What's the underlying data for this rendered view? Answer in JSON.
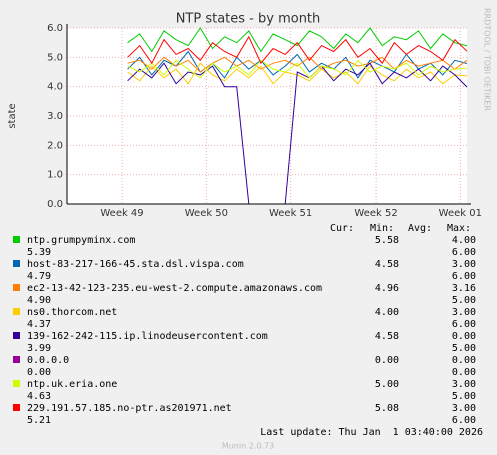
{
  "chart_data": {
    "type": "line",
    "title": "NTP states - by month",
    "y_label": "state",
    "side_text": "RRDTOOL / TOBI OETIKER",
    "x": [
      5,
      6,
      7,
      8,
      9,
      10,
      11,
      12,
      13,
      14,
      15,
      16,
      17,
      18,
      19,
      20,
      21,
      22,
      23,
      24,
      25,
      26,
      27,
      28,
      29,
      30,
      31,
      32,
      33
    ],
    "xlim": [
      0,
      33
    ],
    "xticks": [
      {
        "value": 4.54,
        "label": "Week 49"
      },
      {
        "value": 11.5,
        "label": "Week 50"
      },
      {
        "value": 18.45,
        "label": "Week 51"
      },
      {
        "value": 25.5,
        "label": "Week 52"
      },
      {
        "value": 32.45,
        "label": "Week 01"
      }
    ],
    "ylim": [
      0,
      6
    ],
    "yticks": [
      {
        "value": 0,
        "label": "0.0"
      },
      {
        "value": 1,
        "label": "1.0"
      },
      {
        "value": 2,
        "label": "2.0"
      },
      {
        "value": 3,
        "label": "3.0"
      },
      {
        "value": 4,
        "label": "4.0"
      },
      {
        "value": 5,
        "label": "5.0"
      },
      {
        "value": 6,
        "label": "6.0"
      }
    ],
    "grid": true,
    "series": [
      {
        "name": "ntp.grumpyminx.com",
        "color": "#00cc00",
        "values": [
          5.5,
          5.8,
          5.2,
          5.9,
          5.6,
          5.4,
          6.0,
          5.3,
          5.7,
          5.5,
          5.9,
          5.2,
          5.8,
          5.6,
          5.4,
          5.9,
          5.7,
          5.3,
          5.8,
          5.5,
          6.0,
          5.4,
          5.7,
          5.6,
          5.9,
          5.3,
          5.8,
          5.5,
          5.39
        ]
      },
      {
        "name": "host-83-217-166-45.sta.dsl.vispa.com",
        "color": "#0066b3",
        "values": [
          4.6,
          5.0,
          4.4,
          4.9,
          4.7,
          5.2,
          4.5,
          4.8,
          4.3,
          5.0,
          4.6,
          4.9,
          4.4,
          4.7,
          5.1,
          4.5,
          4.8,
          4.6,
          5.0,
          4.3,
          4.9,
          4.7,
          4.5,
          5.1,
          4.6,
          4.8,
          4.4,
          4.9,
          4.79
        ]
      },
      {
        "name": "ec2-13-42-123-235.eu-west-2.compute.amazonaws.com",
        "color": "#ff8000",
        "values": [
          4.8,
          4.9,
          4.6,
          5.0,
          4.7,
          4.9,
          4.5,
          4.8,
          5.0,
          4.7,
          4.9,
          4.6,
          4.8,
          4.9,
          4.7,
          5.0,
          4.6,
          4.8,
          4.9,
          4.7,
          4.8,
          5.0,
          4.6,
          4.9,
          4.7,
          4.8,
          4.9,
          4.6,
          4.9
        ]
      },
      {
        "name": "ns0.thorcom.net",
        "color": "#ffcc00",
        "values": [
          4.5,
          4.2,
          4.7,
          4.3,
          4.6,
          4.1,
          4.8,
          4.4,
          4.2,
          4.6,
          4.3,
          4.7,
          4.1,
          4.5,
          4.4,
          4.2,
          4.6,
          4.3,
          4.5,
          4.1,
          4.7,
          4.4,
          4.2,
          4.6,
          4.3,
          4.5,
          4.1,
          4.4,
          4.37
        ]
      },
      {
        "name": "139-162-242-115.ip.linodeusercontent.com",
        "color": "#330099",
        "values": [
          4.2,
          4.6,
          4.3,
          4.8,
          4.1,
          4.5,
          4.4,
          4.7,
          4.0,
          4.0,
          0,
          0,
          0,
          0,
          4.5,
          4.3,
          4.7,
          4.2,
          4.6,
          4.4,
          4.8,
          4.1,
          4.5,
          4.3,
          4.6,
          4.2,
          4.7,
          4.4,
          3.99
        ]
      },
      {
        "name": "0.0.0.0",
        "color": "#990099",
        "values": [
          0,
          0,
          0,
          0,
          0,
          0,
          0,
          0,
          0,
          0,
          0,
          0,
          0,
          0,
          0,
          0,
          0,
          0,
          0,
          0,
          0,
          0,
          0,
          0,
          0,
          0,
          0,
          0,
          0
        ]
      },
      {
        "name": "ntp.uk.eria.one",
        "color": "#ccff00",
        "values": [
          4.7,
          4.5,
          4.8,
          4.4,
          4.9,
          4.6,
          4.3,
          4.8,
          4.5,
          4.7,
          4.4,
          4.9,
          4.6,
          4.5,
          4.8,
          4.3,
          4.7,
          4.6,
          4.4,
          4.9,
          4.5,
          4.7,
          4.6,
          4.8,
          4.4,
          4.7,
          4.5,
          4.6,
          4.63
        ]
      },
      {
        "name": "229.191.57.185.no-ptr.as201971.net",
        "color": "#ff0000",
        "values": [
          5.0,
          5.4,
          4.8,
          5.6,
          5.1,
          5.3,
          4.9,
          5.5,
          5.2,
          5.0,
          5.7,
          4.8,
          5.3,
          5.1,
          5.5,
          4.9,
          5.4,
          5.2,
          5.6,
          5.0,
          5.3,
          4.8,
          5.5,
          5.1,
          5.4,
          5.2,
          4.9,
          5.6,
          5.21
        ]
      }
    ],
    "legend_header": [
      "Cur:",
      "Min:",
      "Avg:",
      "Max:"
    ],
    "legend_rows": [
      {
        "line1": [
          "5.58",
          "4.00"
        ],
        "line2": [
          "5.39",
          "6.00"
        ]
      },
      {
        "line1": [
          "4.58",
          "3.00"
        ],
        "line2": [
          "4.79",
          "6.00"
        ]
      },
      {
        "line1": [
          "4.96",
          "3.16"
        ],
        "line2": [
          "4.90",
          "5.00"
        ]
      },
      {
        "line1": [
          "4.00",
          "3.00"
        ],
        "line2": [
          "4.37",
          "6.00"
        ]
      },
      {
        "line1": [
          "4.58",
          "0.00"
        ],
        "line2": [
          "3.99",
          "5.00"
        ]
      },
      {
        "line1": [
          "0.00",
          "0.00"
        ],
        "line2": [
          "0.00",
          "0.00"
        ]
      },
      {
        "line1": [
          "5.00",
          "3.00"
        ],
        "line2": [
          "4.63",
          "5.00"
        ]
      },
      {
        "line1": [
          "5.08",
          "3.00"
        ],
        "line2": [
          "5.21",
          "6.00"
        ]
      }
    ],
    "last_update": "Last update: Thu Jan  1 03:40:00 2026",
    "footer": "Munin 2.0.73"
  }
}
